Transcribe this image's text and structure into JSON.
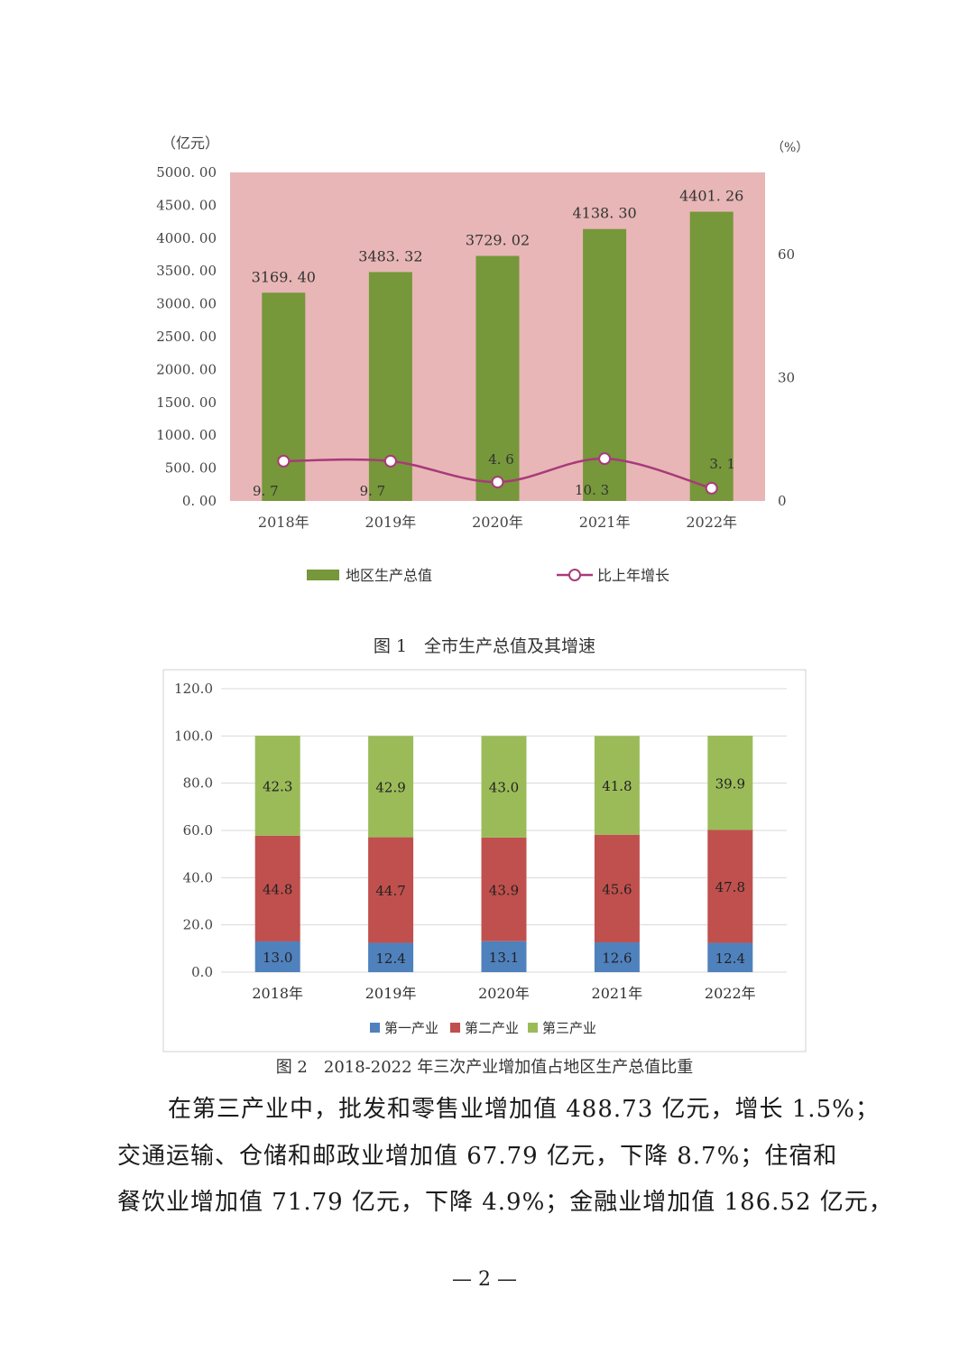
{
  "figure1": {
    "caption": "图 1　全市生产总值及其增速",
    "chart_data": {
      "type": "bar",
      "left_unit": "（亿元）",
      "right_unit": "（%）",
      "categories": [
        "2018年",
        "2019年",
        "2020年",
        "2021年",
        "2022年"
      ],
      "series": [
        {
          "name": "地区生产总值",
          "kind": "bar",
          "axis": "left",
          "values": [
            3169.4,
            3483.32,
            3729.02,
            4138.3,
            4401.26
          ],
          "labels": [
            "3169. 40",
            "3483. 32",
            "3729. 02",
            "4138. 30",
            "4401. 26"
          ]
        },
        {
          "name": "比上年增长",
          "kind": "line",
          "axis": "right",
          "values": [
            9.7,
            9.7,
            4.6,
            10.3,
            3.1
          ],
          "labels": [
            "9. 7",
            "9. 7",
            "4. 6",
            "10. 3",
            "3. 1"
          ]
        }
      ],
      "left_ticks": [
        "0. 00",
        "500. 00",
        "1000. 00",
        "1500. 00",
        "2000. 00",
        "2500. 00",
        "3000. 00",
        "3500. 00",
        "4000. 00",
        "4500. 00",
        "5000. 00"
      ],
      "ylim": [
        0,
        5000
      ],
      "right_ticks": [
        "0",
        "30",
        "60"
      ],
      "y2lim": [
        0,
        80
      ],
      "colors": {
        "bar": "#76973a",
        "line": "#a83a7a",
        "plot_bg": "#e8b6b6"
      }
    }
  },
  "figure2": {
    "caption": "图 2　2018-2022 年三次产业增加值占地区生产总值比重",
    "chart_data": {
      "type": "bar",
      "stacked": true,
      "categories": [
        "2018年",
        "2019年",
        "2020年",
        "2021年",
        "2022年"
      ],
      "series": [
        {
          "name": "第一产业",
          "values": [
            13.0,
            12.4,
            13.1,
            12.6,
            12.4
          ],
          "color": "#4f81bd"
        },
        {
          "name": "第二产业",
          "values": [
            44.8,
            44.7,
            43.9,
            45.6,
            47.8
          ],
          "color": "#c0504d"
        },
        {
          "name": "第三产业",
          "values": [
            42.3,
            42.9,
            43.0,
            41.8,
            39.9
          ],
          "color": "#9bbb59"
        }
      ],
      "y_ticks": [
        "0.0",
        "20.0",
        "40.0",
        "60.0",
        "80.0",
        "100.0",
        "120.0"
      ],
      "ylim": [
        0,
        120
      ],
      "grid": true,
      "legend": "bottom"
    }
  },
  "text": {
    "line1": "在第三产业中，批发和零售业增加值 488.73 亿元，增长 1.5%；",
    "line2": "交通运输、仓储和邮政业增加值 67.79 亿元，下降 8.7%；住宿和",
    "line3": "餐饮业增加值 71.79 亿元，下降 4.9%；金融业增加值 186.52 亿元，"
  },
  "page_number": "— 2 —"
}
